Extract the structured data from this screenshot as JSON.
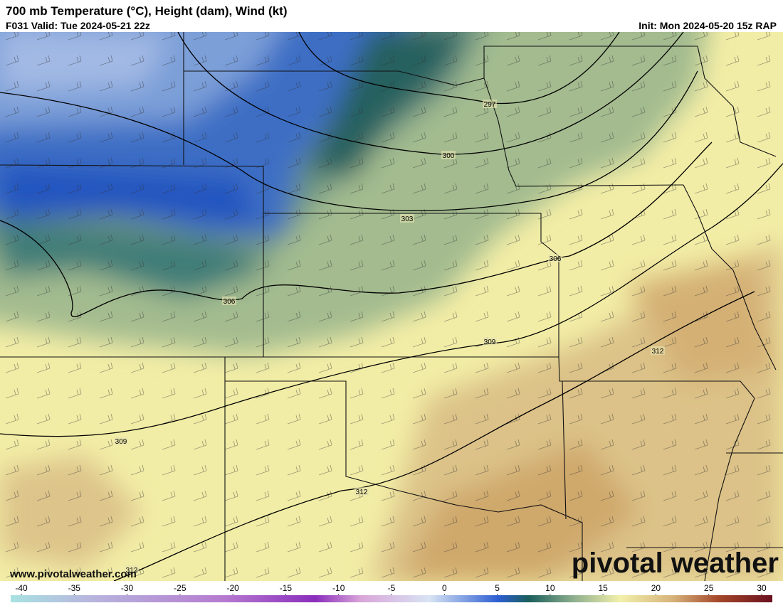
{
  "header": {
    "title": "700 mb Temperature (°C), Height (dam), Wind (kt)",
    "valid": "F031 Valid: Tue 2024-05-21 22z",
    "init": "Init: Mon 2024-05-20 15z RAP"
  },
  "map": {
    "contour_labels": [
      "297",
      "300",
      "303",
      "306",
      "306",
      "309",
      "312",
      "309",
      "312",
      "312"
    ]
  },
  "colorbar": {
    "ticks": [
      -40,
      -35,
      -30,
      -25,
      -20,
      -15,
      -10,
      -5,
      0,
      5,
      10,
      15,
      20,
      25,
      30
    ]
  },
  "footer": {
    "url": "www.pivotalweather.com",
    "brand": "pivotal weather"
  }
}
